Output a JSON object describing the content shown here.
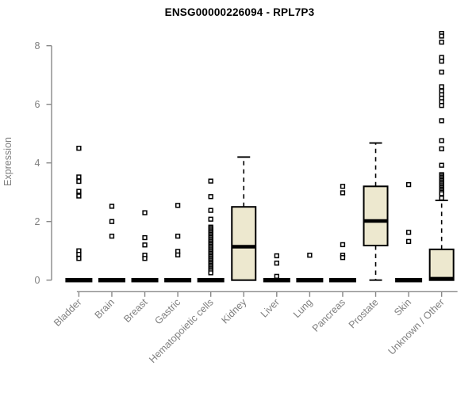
{
  "page": {
    "background": "#ffffff"
  },
  "chart_data": {
    "type": "boxplot",
    "title": "ENSG00000226094 - RPL7P3",
    "xlabel": "",
    "ylabel": "Expression",
    "ylim": [
      0,
      8.5
    ],
    "yticks": [
      0,
      2,
      4,
      6,
      8
    ],
    "grid": false,
    "legend": null,
    "box_fill_color": "#EDE8CF",
    "box_stroke_color": "#000000",
    "axis_color": "#888888",
    "tick_label_color": "#7f7f7f",
    "categories": [
      {
        "label": "Bladder",
        "q1": 0,
        "median": 0,
        "q3": 0,
        "whisker_low": 0,
        "whisker_high": 0,
        "outliers": [
          4.5,
          3.52,
          3.37,
          3.03,
          2.87,
          1.0,
          0.88,
          0.74
        ]
      },
      {
        "label": "Brain",
        "q1": 0,
        "median": 0,
        "q3": 0,
        "whisker_low": 0,
        "whisker_high": 0,
        "outliers": [
          2.52,
          2.0,
          1.5
        ]
      },
      {
        "label": "Breast",
        "q1": 0,
        "median": 0,
        "q3": 0,
        "whisker_low": 0,
        "whisker_high": 0,
        "outliers": [
          2.3,
          1.45,
          1.2,
          0.85,
          0.74
        ]
      },
      {
        "label": "Gastric",
        "q1": 0,
        "median": 0,
        "q3": 0,
        "whisker_low": 0,
        "whisker_high": 0,
        "outliers": [
          2.55,
          1.5,
          0.98,
          0.86
        ]
      },
      {
        "label": "Hematopoietic cells",
        "q1": 0,
        "median": 0,
        "q3": 0,
        "whisker_low": 0,
        "whisker_high": 0,
        "outliers": [
          3.38,
          2.85,
          2.38,
          2.08,
          1.81,
          1.76,
          1.71,
          1.66,
          1.61,
          1.56,
          1.51,
          1.46,
          1.41,
          1.36,
          1.31,
          1.26,
          1.21,
          1.16,
          1.11,
          1.06,
          1.01,
          0.96,
          0.91,
          0.86,
          0.81,
          0.76,
          0.71,
          0.66,
          0.61,
          0.56,
          0.51,
          0.46,
          0.41,
          0.36,
          0.31,
          0.25
        ]
      },
      {
        "label": "Kidney",
        "q1": 0,
        "median": 1.14,
        "q3": 2.5,
        "whisker_low": 0,
        "whisker_high": 4.2,
        "outliers": []
      },
      {
        "label": "Liver",
        "q1": 0,
        "median": 0,
        "q3": 0,
        "whisker_low": 0,
        "whisker_high": 0,
        "outliers": [
          0.83,
          0.58,
          0.13
        ]
      },
      {
        "label": "Lung",
        "q1": 0,
        "median": 0,
        "q3": 0,
        "whisker_low": 0,
        "whisker_high": 0,
        "outliers": [
          0.85
        ]
      },
      {
        "label": "Pancreas",
        "q1": 0,
        "median": 0,
        "q3": 0,
        "whisker_low": 0,
        "whisker_high": 0,
        "outliers": [
          3.2,
          2.98,
          1.21,
          0.85,
          0.77
        ]
      },
      {
        "label": "Prostate",
        "q1": 1.18,
        "median": 2.02,
        "q3": 3.2,
        "whisker_low": 0,
        "whisker_high": 4.68,
        "outliers": []
      },
      {
        "label": "Skin",
        "q1": 0,
        "median": 0,
        "q3": 0,
        "whisker_low": 0,
        "whisker_high": 0,
        "outliers": [
          3.26,
          1.63,
          1.32
        ]
      },
      {
        "label": "Unknown / Other",
        "q1": 0,
        "median": 0.05,
        "q3": 1.05,
        "whisker_low": 0,
        "whisker_high": 2.72,
        "outliers": [
          8.42,
          8.33,
          8.12,
          7.6,
          7.47,
          7.1,
          6.6,
          6.45,
          6.33,
          6.21,
          6.09,
          5.96,
          5.44,
          4.76,
          4.48,
          3.92,
          3.6,
          3.55,
          3.5,
          3.45,
          3.4,
          3.35,
          3.3,
          3.25,
          3.2,
          3.15,
          3.1,
          3.05,
          3.0,
          2.95,
          2.8
        ]
      }
    ]
  }
}
